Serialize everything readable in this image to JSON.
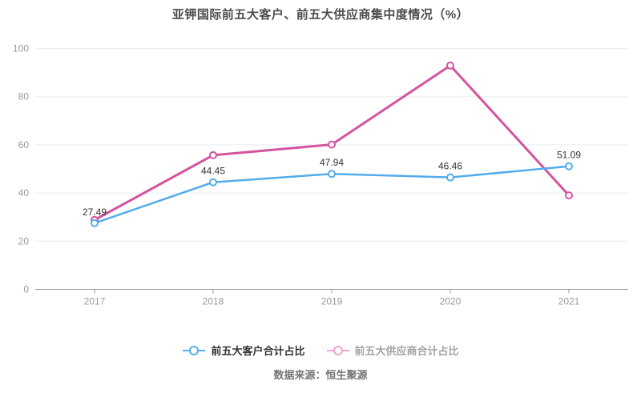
{
  "title": "亚钾国际前五大客户、前五大供应商集中度情况（%）",
  "source": "数据来源：恒生聚源",
  "colors": {
    "series_customer": "#54adeb",
    "series_supplier": "#d5549f",
    "grid_line": "#e8edf4",
    "axis_line": "#999999",
    "axis_label": "#999999",
    "data_label": "#333333",
    "background": "#ffffff"
  },
  "legend": {
    "icon_colors": [
      "#54adeb",
      "#f0a2cb"
    ],
    "text_colors": [
      "#333333",
      "#a3a3a3"
    ]
  },
  "chart_data": {
    "type": "line",
    "title": "亚钾国际前五大客户、前五大供应商集中度情况（%）",
    "categories": [
      "2017",
      "2018",
      "2019",
      "2020",
      "2021"
    ],
    "series": [
      {
        "name": "前五大客户合计占比",
        "color": "#54adeb",
        "values": [
          27.49,
          44.45,
          47.94,
          46.46,
          51.09
        ],
        "data_labels": [
          "27.49",
          "44.45",
          "47.94",
          "46.46",
          "51.09"
        ]
      },
      {
        "name": "前五大供应商合计占比",
        "color": "#d5549f",
        "values": [
          28.8,
          55.7,
          60.1,
          92.9,
          39.0
        ],
        "data_labels": null
      }
    ],
    "xlabel": "",
    "ylabel": "",
    "ylim": [
      0,
      100
    ],
    "yticks": [
      0,
      20,
      40,
      60,
      80,
      100
    ],
    "grid": true,
    "legend_position": "bottom"
  }
}
